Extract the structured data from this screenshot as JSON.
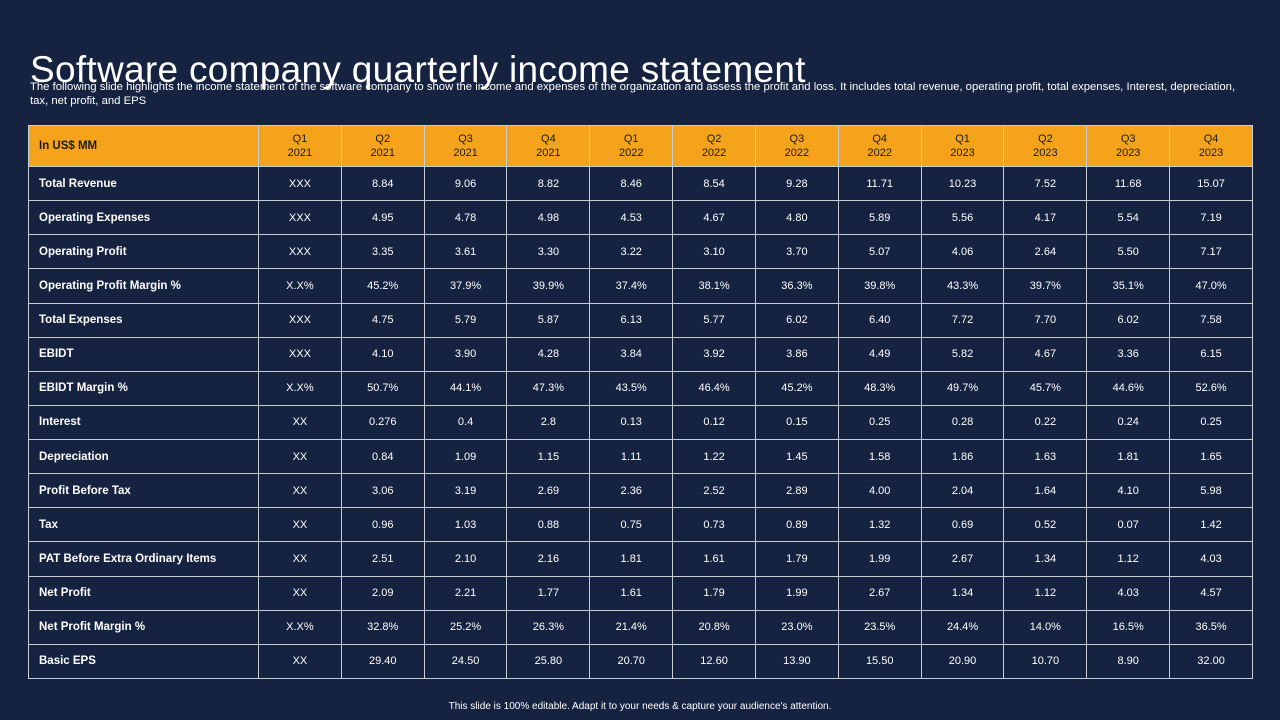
{
  "slide": {
    "title": "Software company quarterly income statement",
    "description": "The following slide highlights the income statement of the software company to show the income and expenses of the organization and assess the profit and loss. It includes total revenue, operating profit, total expenses, Interest, depreciation, tax, net profit, and EPS",
    "footer": "This slide is 100% editable. Adapt it to your needs & capture your audience's attention."
  },
  "table": {
    "corner_label": "In US$ MM",
    "columns": [
      {
        "q": "Q1",
        "year": "2021"
      },
      {
        "q": "Q2",
        "year": "2021"
      },
      {
        "q": "Q3",
        "year": "2021"
      },
      {
        "q": "Q4",
        "year": "2021"
      },
      {
        "q": "Q1",
        "year": "2022"
      },
      {
        "q": "Q2",
        "year": "2022"
      },
      {
        "q": "Q3",
        "year": "2022"
      },
      {
        "q": "Q4",
        "year": "2022"
      },
      {
        "q": "Q1",
        "year": "2023"
      },
      {
        "q": "Q2",
        "year": "2023"
      },
      {
        "q": "Q3",
        "year": "2023"
      },
      {
        "q": "Q4",
        "year": "2023"
      }
    ],
    "rows": [
      {
        "label": "Total Revenue",
        "values": [
          "XXX",
          "8.84",
          "9.06",
          "8.82",
          "8.46",
          "8.54",
          "9.28",
          "11.71",
          "10.23",
          "7.52",
          "11.68",
          "15.07"
        ]
      },
      {
        "label": "Operating Expenses",
        "values": [
          "XXX",
          "4.95",
          "4.78",
          "4.98",
          "4.53",
          "4.67",
          "4.80",
          "5.89",
          "5.56",
          "4.17",
          "5.54",
          "7.19"
        ]
      },
      {
        "label": "Operating Profit",
        "values": [
          "XXX",
          "3.35",
          "3.61",
          "3.30",
          "3.22",
          "3.10",
          "3.70",
          "5.07",
          "4.06",
          "2.64",
          "5.50",
          "7.17"
        ]
      },
      {
        "label": "Operating Profit Margin %",
        "values": [
          "X.X%",
          "45.2%",
          "37.9%",
          "39.9%",
          "37.4%",
          "38.1%",
          "36.3%",
          "39.8%",
          "43.3%",
          "39.7%",
          "35.1%",
          "47.0%"
        ]
      },
      {
        "label": "Total Expenses",
        "values": [
          "XXX",
          "4.75",
          "5.79",
          "5.87",
          "6.13",
          "5.77",
          "6.02",
          "6.40",
          "7.72",
          "7.70",
          "6.02",
          "7.58"
        ]
      },
      {
        "label": "EBIDT",
        "values": [
          "XXX",
          "4.10",
          "3.90",
          "4.28",
          "3.84",
          "3.92",
          "3.86",
          "4.49",
          "5.82",
          "4.67",
          "3.36",
          "6.15"
        ]
      },
      {
        "label": "EBIDT Margin %",
        "values": [
          "X.X%",
          "50.7%",
          "44.1%",
          "47.3%",
          "43.5%",
          "46.4%",
          "45.2%",
          "48.3%",
          "49.7%",
          "45.7%",
          "44.6%",
          "52.6%"
        ]
      },
      {
        "label": "Interest",
        "values": [
          "XX",
          "0.276",
          "0.4",
          "2.8",
          "0.13",
          "0.12",
          "0.15",
          "0.25",
          "0.28",
          "0.22",
          "0.24",
          "0.25"
        ]
      },
      {
        "label": "Depreciation",
        "values": [
          "XX",
          "0.84",
          "1.09",
          "1.15",
          "1.11",
          "1.22",
          "1.45",
          "1.58",
          "1.86",
          "1.63",
          "1.81",
          "1.65"
        ]
      },
      {
        "label": "Profit Before Tax",
        "values": [
          "XX",
          "3.06",
          "3.19",
          "2.69",
          "2.36",
          "2.52",
          "2.89",
          "4.00",
          "2.04",
          "1.64",
          "4.10",
          "5.98"
        ]
      },
      {
        "label": "Tax",
        "values": [
          "XX",
          "0.96",
          "1.03",
          "0.88",
          "0.75",
          "0.73",
          "0.89",
          "1.32",
          "0.69",
          "0.52",
          "0.07",
          "1.42"
        ]
      },
      {
        "label": "PAT Before Extra Ordinary Items",
        "values": [
          "XX",
          "2.51",
          "2.10",
          "2.16",
          "1.81",
          "1.61",
          "1.79",
          "1.99",
          "2.67",
          "1.34",
          "1.12",
          "4.03"
        ]
      },
      {
        "label": "Net Profit",
        "values": [
          "XX",
          "2.09",
          "2.21",
          "1.77",
          "1.61",
          "1.79",
          "1.99",
          "2.67",
          "1.34",
          "1.12",
          "4.03",
          "4.57"
        ]
      },
      {
        "label": "Net Profit Margin %",
        "values": [
          "X.X%",
          "32.8%",
          "25.2%",
          "26.3%",
          "21.4%",
          "20.8%",
          "23.0%",
          "23.5%",
          "24.4%",
          "14.0%",
          "16.5%",
          "36.5%"
        ]
      },
      {
        "label": "Basic EPS",
        "values": [
          "XX",
          "29.40",
          "24.50",
          "25.80",
          "20.70",
          "12.60",
          "13.90",
          "15.50",
          "20.90",
          "10.70",
          "8.90",
          "32.00"
        ]
      }
    ]
  },
  "colors": {
    "background": "#152240",
    "header": "#f5a31a",
    "grid": "#c9cdd6",
    "text": "#ffffff"
  }
}
